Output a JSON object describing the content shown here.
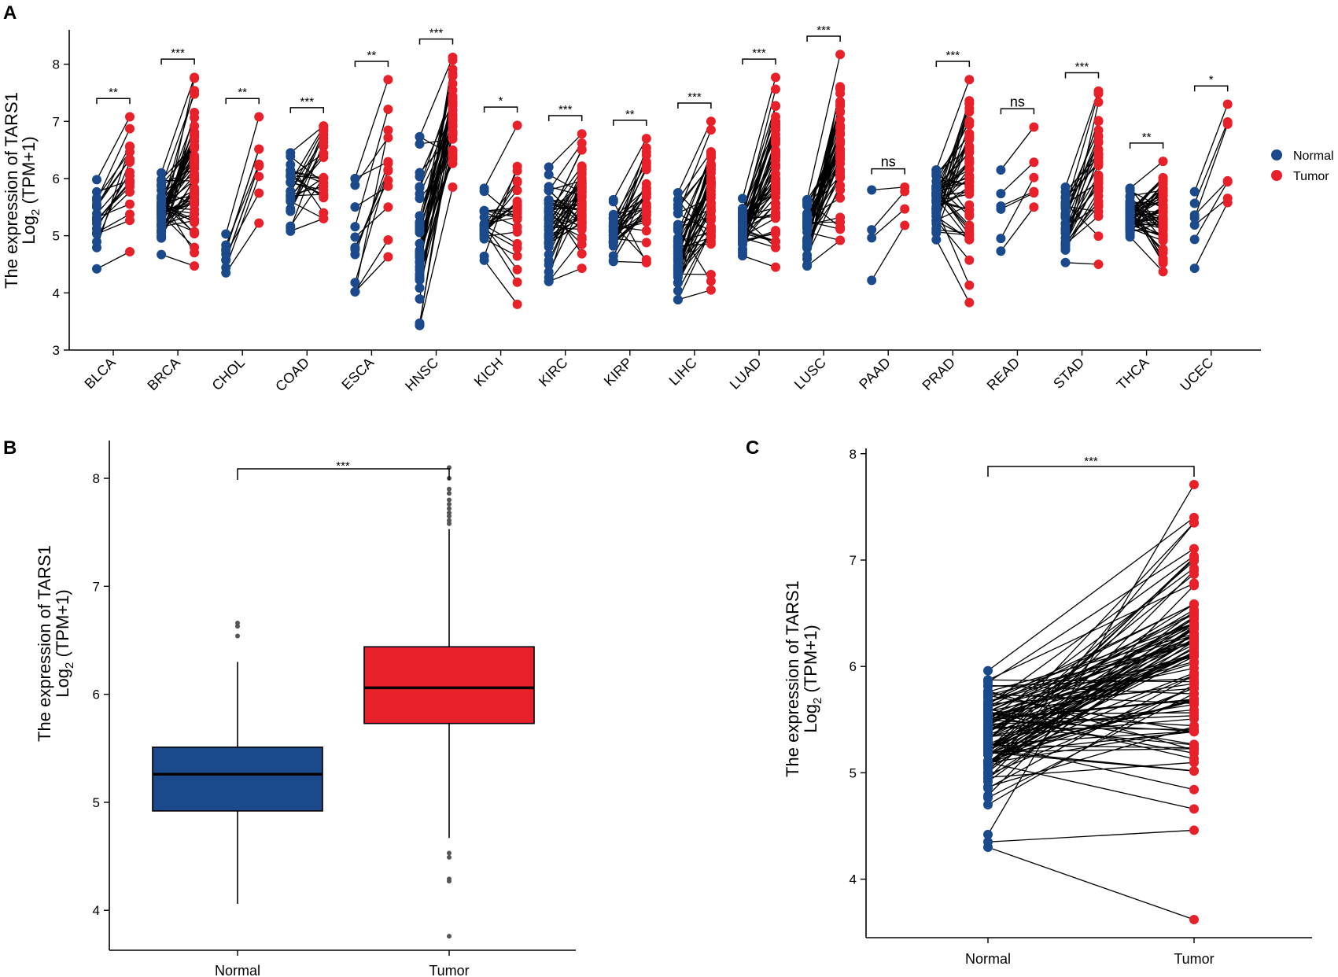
{
  "colors": {
    "normal": "#1b4a8c",
    "tumor": "#e8202a",
    "axis": "#000000",
    "outlier": "#555555"
  },
  "chart_data": [
    {
      "panel": "A",
      "type": "scatter",
      "subtype": "paired-dot",
      "ylabel_line1": "The expression of TARS1",
      "ylabel_line2_prefix": "Log",
      "ylabel_line2_sub": "2",
      "ylabel_line2_suffix": " (TPM+1)",
      "ylim": [
        3,
        8.6
      ],
      "yticks": [
        3,
        4,
        5,
        6,
        7,
        8
      ],
      "legend": {
        "position": "right",
        "entries": [
          {
            "name": "Normal",
            "color": "#1b4a8c"
          },
          {
            "name": "Tumor",
            "color": "#e8202a"
          }
        ]
      },
      "groups": [
        {
          "name": "BLCA",
          "sig": "**",
          "n_lo": 4.42,
          "n_hi": 5.98,
          "t_lo": 4.72,
          "t_hi": 7.08,
          "pairs": 19,
          "seed": 1
        },
        {
          "name": "BRCA",
          "sig": "***",
          "n_lo": 4.67,
          "n_hi": 6.1,
          "t_lo": 4.47,
          "t_hi": 7.77,
          "pairs": 60,
          "seed": 2
        },
        {
          "name": "CHOL",
          "sig": "**",
          "n_lo": 4.35,
          "n_hi": 5.03,
          "t_lo": 5.22,
          "t_hi": 7.08,
          "pairs": 9,
          "seed": 3
        },
        {
          "name": "COAD",
          "sig": "***",
          "n_lo": 5.08,
          "n_hi": 6.45,
          "t_lo": 5.3,
          "t_hi": 6.92,
          "pairs": 26,
          "seed": 4
        },
        {
          "name": "ESCA",
          "sig": "**",
          "n_lo": 4.02,
          "n_hi": 6.0,
          "t_lo": 4.63,
          "t_hi": 7.73,
          "pairs": 13,
          "seed": 5
        },
        {
          "name": "HNSC",
          "sig": "***",
          "n_lo": 3.43,
          "n_hi": 6.73,
          "t_lo": 5.85,
          "t_hi": 8.12,
          "pairs": 43,
          "seed": 6
        },
        {
          "name": "KICH",
          "sig": "*",
          "n_lo": 4.57,
          "n_hi": 5.83,
          "t_lo": 3.8,
          "t_hi": 6.93,
          "pairs": 25,
          "seed": 7
        },
        {
          "name": "KIRC",
          "sig": "***",
          "n_lo": 4.2,
          "n_hi": 6.2,
          "t_lo": 4.43,
          "t_hi": 6.78,
          "pairs": 50,
          "seed": 8
        },
        {
          "name": "KIRP",
          "sig": "**",
          "n_lo": 4.55,
          "n_hi": 5.63,
          "t_lo": 4.53,
          "t_hi": 6.7,
          "pairs": 32,
          "seed": 9
        },
        {
          "name": "LIHC",
          "sig": "***",
          "n_lo": 3.88,
          "n_hi": 5.75,
          "t_lo": 4.05,
          "t_hi": 7.0,
          "pairs": 50,
          "seed": 10
        },
        {
          "name": "LUAD",
          "sig": "***",
          "n_lo": 4.65,
          "n_hi": 5.65,
          "t_lo": 4.45,
          "t_hi": 7.77,
          "pairs": 57,
          "seed": 11
        },
        {
          "name": "LUSC",
          "sig": "***",
          "n_lo": 4.47,
          "n_hi": 5.63,
          "t_lo": 4.92,
          "t_hi": 8.17,
          "pairs": 49,
          "seed": 12
        },
        {
          "name": "PAAD",
          "sig": "ns",
          "n_lo": 4.22,
          "n_hi": 5.8,
          "t_lo": 5.18,
          "t_hi": 5.85,
          "pairs": 4,
          "seed": 13
        },
        {
          "name": "PRAD",
          "sig": "***",
          "n_lo": 4.93,
          "n_hi": 6.15,
          "t_lo": 3.83,
          "t_hi": 7.73,
          "pairs": 52,
          "seed": 14
        },
        {
          "name": "READ",
          "sig": "ns",
          "n_lo": 4.73,
          "n_hi": 6.15,
          "t_lo": 5.5,
          "t_hi": 6.9,
          "pairs": 6,
          "seed": 15
        },
        {
          "name": "STAD",
          "sig": "***",
          "n_lo": 4.53,
          "n_hi": 5.85,
          "t_lo": 4.5,
          "t_hi": 7.53,
          "pairs": 32,
          "seed": 16
        },
        {
          "name": "THCA",
          "sig": "**",
          "n_lo": 4.98,
          "n_hi": 5.83,
          "t_lo": 4.37,
          "t_hi": 6.3,
          "pairs": 58,
          "seed": 17
        },
        {
          "name": "UCEC",
          "sig": "*",
          "n_lo": 4.43,
          "n_hi": 5.77,
          "t_lo": 5.58,
          "t_hi": 7.3,
          "pairs": 7,
          "seed": 18
        }
      ]
    },
    {
      "panel": "B",
      "type": "box",
      "ylabel_line1": "The expression of TARS1",
      "ylabel_line2_prefix": "Log",
      "ylabel_line2_sub": "2",
      "ylabel_line2_suffix": " (TPM+1)",
      "ylim": [
        3.63,
        8.35
      ],
      "yticks": [
        4,
        5,
        6,
        7,
        8
      ],
      "sig": "***",
      "categories": [
        "Normal",
        "Tumor"
      ],
      "boxes": [
        {
          "name": "Normal",
          "min": 4.06,
          "q1": 4.92,
          "median": 5.26,
          "q3": 5.51,
          "max": 6.3,
          "outliers": [
            6.66,
            6.63,
            6.54
          ]
        },
        {
          "name": "Tumor",
          "min": 4.67,
          "q1": 5.73,
          "median": 6.06,
          "q3": 6.44,
          "max": 7.53,
          "outliers": [
            8.1,
            8.0,
            7.9,
            7.86,
            7.8,
            7.76,
            7.72,
            7.68,
            7.65,
            7.61,
            7.58,
            4.53,
            4.49,
            4.29,
            4.27,
            3.76
          ]
        }
      ]
    },
    {
      "panel": "C",
      "type": "scatter",
      "subtype": "paired-dot",
      "ylabel_line1": "The expression of TARS1",
      "ylabel_line2_prefix": "Log",
      "ylabel_line2_sub": "2",
      "ylabel_line2_suffix": " (TPM+1)",
      "ylim": [
        3.45,
        8.05
      ],
      "yticks": [
        4,
        5,
        6,
        7,
        8
      ],
      "sig": "***",
      "categories": [
        "Normal",
        "Tumor"
      ],
      "pairs": 110,
      "n_lo": 4.3,
      "n_hi": 5.96,
      "t_lo": 3.62,
      "t_hi": 7.71,
      "extremes": {
        "normal": [
          4.3,
          4.35,
          4.42,
          5.96
        ],
        "tumor": [
          3.62,
          4.46,
          7.71,
          7.4
        ]
      }
    }
  ]
}
